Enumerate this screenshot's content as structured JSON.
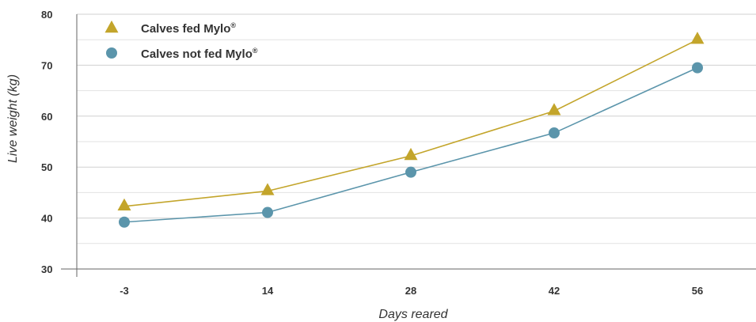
{
  "chart_data": {
    "type": "line",
    "categories": [
      "-3",
      "14",
      "28",
      "42",
      "56"
    ],
    "series": [
      {
        "name": "Calves fed Mylo",
        "name_mark": "®",
        "marker": "triangle",
        "color": "#c3a52b",
        "values": [
          42.3,
          45.3,
          52.2,
          61.0,
          75.0
        ]
      },
      {
        "name": "Calves not fed Mylo",
        "name_mark": "®",
        "marker": "circle",
        "color": "#5b95ab",
        "values": [
          39.2,
          41.1,
          49.0,
          56.7,
          69.5
        ]
      }
    ],
    "xlabel": "Days reared",
    "ylabel": "Live weight (kg)",
    "ylim": [
      30,
      80
    ],
    "yticks": [
      30,
      40,
      50,
      60,
      70,
      80
    ],
    "grid": true,
    "legend": "top-left"
  }
}
